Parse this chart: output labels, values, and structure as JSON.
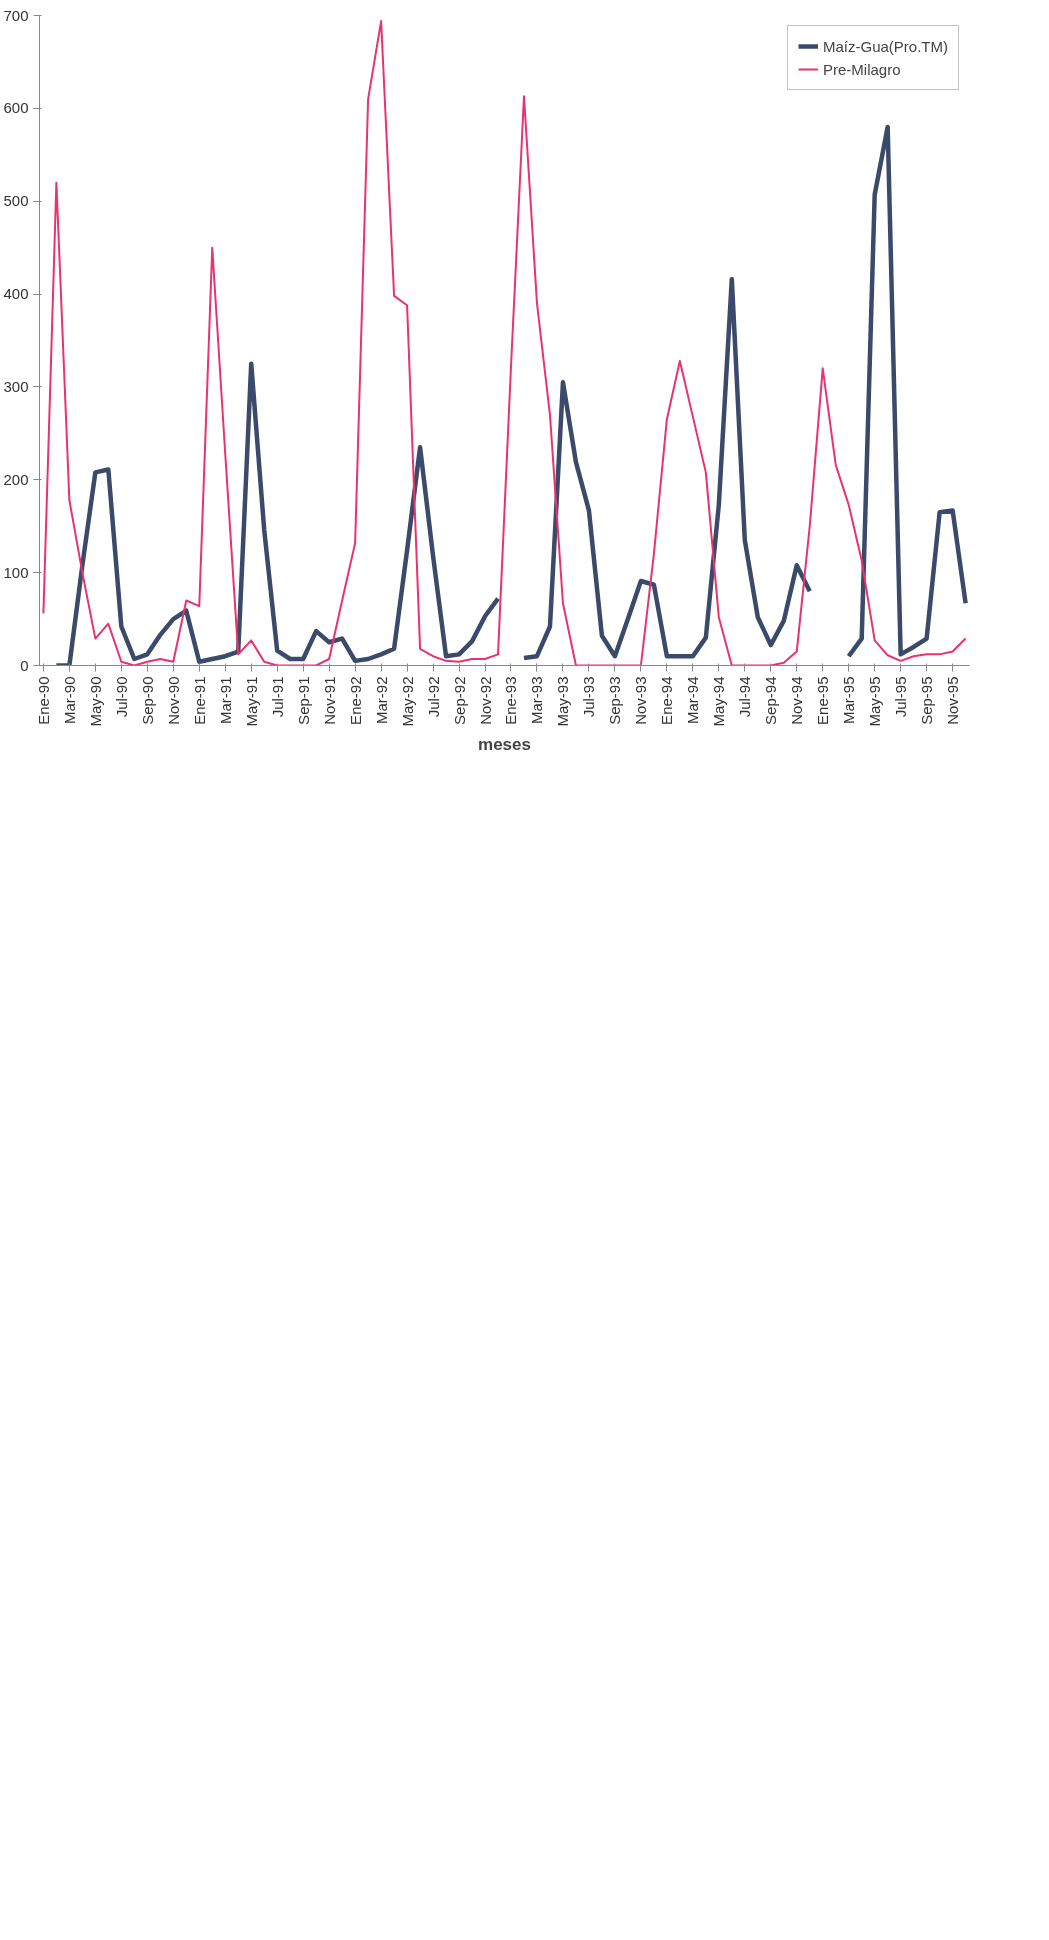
{
  "chart_data": {
    "type": "line",
    "xlabel": "meses",
    "categories": [
      "Ene-90",
      null,
      "Mar-90",
      null,
      "May-90",
      null,
      "Jul-90",
      null,
      "Sep-90",
      null,
      "Nov-90",
      null,
      "Ene-91",
      null,
      "Mar-91",
      null,
      "May-91",
      null,
      "Jul-91",
      null,
      "Sep-91",
      null,
      "Nov-91",
      null,
      "Ene-92",
      null,
      "Mar-92",
      null,
      "May-92",
      null,
      "Jul-92",
      null,
      "Sep-92",
      null,
      "Nov-92",
      null,
      "Ene-93",
      null,
      "Mar-93",
      null,
      "May-93",
      null,
      "Jul-93",
      null,
      "Sep-93",
      null,
      "Nov-93",
      null,
      "Ene-94",
      null,
      "Mar-94",
      null,
      "May-94",
      null,
      "Jul-94",
      null,
      "Sep-94",
      null,
      "Nov-94",
      null,
      "Ene-95",
      null,
      "Mar-95",
      null,
      "May-95",
      null,
      "Jul-95",
      null,
      "Sep-95",
      null,
      "Nov-95",
      null
    ],
    "series": [
      {
        "name": "Maíz-Gua(Pro.TM)",
        "color": "#3b4a6b",
        "values": [
          null,
          0,
          0,
          108,
          208,
          211,
          42,
          7,
          12,
          33,
          50,
          59,
          4,
          7,
          10,
          15,
          325,
          146,
          16,
          7,
          7,
          37,
          25,
          29,
          5,
          7,
          12,
          18,
          124,
          235,
          118,
          10,
          12,
          26,
          53,
          72,
          null,
          8,
          10,
          42,
          305,
          219,
          167,
          32,
          10,
          50,
          91,
          87,
          10,
          10,
          10,
          30,
          173,
          416,
          135,
          52,
          22,
          48,
          108,
          80,
          null,
          null,
          10,
          29,
          507,
          580,
          12,
          20,
          29,
          165,
          167,
          67
        ]
      },
      {
        "name": "Pre-Milagro",
        "color": "#e8336e",
        "values": [
          56,
          520,
          178,
          100,
          29,
          45,
          4,
          0,
          4,
          7,
          4,
          70,
          64,
          450,
          228,
          12,
          27,
          4,
          0,
          0,
          0,
          0,
          7,
          70,
          132,
          610,
          694,
          398,
          388,
          18,
          10,
          5,
          4,
          7,
          7,
          12,
          322,
          613,
          390,
          270,
          67,
          0,
          0,
          0,
          0,
          0,
          0,
          120,
          265,
          328,
          268,
          208,
          52,
          0,
          0,
          0,
          0,
          3,
          15,
          150,
          320,
          216,
          173,
          113,
          27,
          11,
          5,
          10,
          12,
          12,
          15,
          29
        ]
      }
    ],
    "ylim": [
      0,
      700
    ],
    "yticks": [
      0,
      100,
      200,
      300,
      400,
      500,
      600,
      700
    ],
    "grid": false,
    "legend": "top right"
  }
}
